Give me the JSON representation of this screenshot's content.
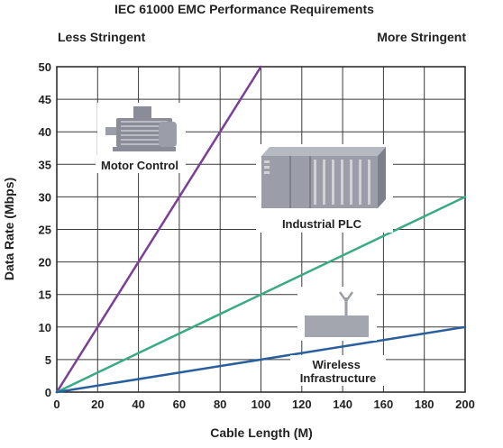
{
  "chart_data": {
    "type": "line",
    "title": "IEC 61000 EMC Performance Requirements",
    "left_label": "Less Stringent",
    "right_label": "More Stringent",
    "xlabel": "Cable Length (M)",
    "ylabel": "Data Rate (Mbps)",
    "xlim": [
      0,
      200
    ],
    "ylim": [
      0,
      50
    ],
    "x_ticks": [
      0,
      20,
      40,
      60,
      80,
      100,
      120,
      140,
      160,
      180,
      200
    ],
    "y_ticks": [
      0,
      5,
      10,
      15,
      20,
      25,
      30,
      35,
      40,
      45,
      50
    ],
    "grid": true,
    "series": [
      {
        "color": "#7b3f98",
        "x": [
          0,
          100
        ],
        "y": [
          0,
          50
        ]
      },
      {
        "color": "#3aaa85",
        "x": [
          0,
          200
        ],
        "y": [
          0,
          30
        ]
      },
      {
        "color": "#2a5f9e",
        "x": [
          0,
          200
        ],
        "y": [
          0,
          10
        ]
      }
    ],
    "annotations": [
      {
        "text": "Motor Control",
        "icon": "motor-icon"
      },
      {
        "text": "Industrial PLC",
        "icon": "plc-icon"
      },
      {
        "text": "Wireless Infrastructure",
        "lines": [
          "Wireless",
          "Infrastructure"
        ],
        "icon": "antenna-icon"
      }
    ]
  }
}
